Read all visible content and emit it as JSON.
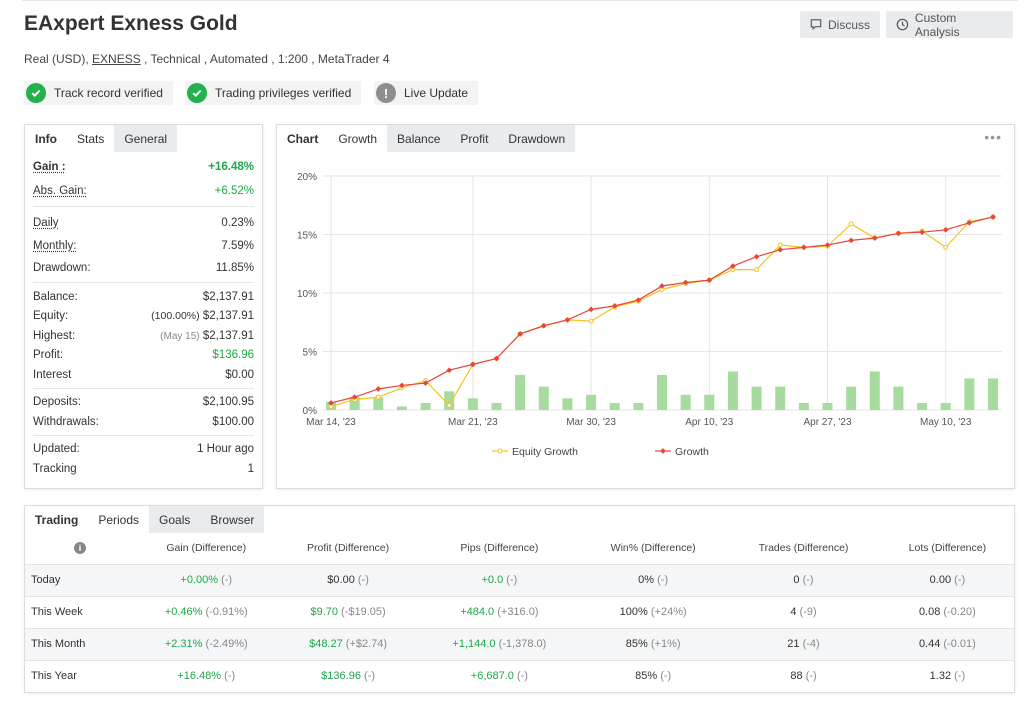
{
  "header": {
    "title": "EAxpert Exness Gold",
    "subtitle_prefix": "Real (USD), ",
    "broker": "EXNESS",
    "subtitle_suffix": " , Technical , Automated , 1:200 , MetaTrader 4",
    "discuss_label": "Discuss",
    "custom_analysis_label": "Custom Analysis"
  },
  "badges": {
    "track_record": "Track record verified",
    "trading_privileges": "Trading privileges verified",
    "live_update": "Live Update"
  },
  "stats_tabs": [
    "Info",
    "Stats",
    "General"
  ],
  "stats": {
    "gain_label": "Gain :",
    "gain_value": "+16.48%",
    "abs_gain_label": "Abs. Gain:",
    "abs_gain_value": "+6.52%",
    "daily_label": "Daily",
    "daily_value": "0.23%",
    "monthly_label": "Monthly:",
    "monthly_value": "7.59%",
    "drawdown_label": "Drawdown:",
    "drawdown_value": "11.85%",
    "balance_label": "Balance:",
    "balance_value": "$2,137.91",
    "equity_label": "Equity:",
    "equity_pct": "(100.00%)",
    "equity_value": "$2,137.91",
    "highest_label": "Highest:",
    "highest_date": "(May 15)",
    "highest_value": "$2,137.91",
    "profit_label": "Profit:",
    "profit_value": "$136.96",
    "interest_label": "Interest",
    "interest_value": "$0.00",
    "deposits_label": "Deposits:",
    "deposits_value": "$2,100.95",
    "withdrawals_label": "Withdrawals:",
    "withdrawals_value": "$100.00",
    "updated_label": "Updated:",
    "updated_value": "1 Hour ago",
    "tracking_label": "Tracking",
    "tracking_value": "1"
  },
  "chart_tabs": [
    "Chart",
    "Growth",
    "Balance",
    "Profit",
    "Drawdown"
  ],
  "chart_data": {
    "type": "line",
    "title": "",
    "x_tick_labels": [
      "Mar 14, '23",
      "Mar 21, '23",
      "Mar 30, '23",
      "Apr 10, '23",
      "Apr 27, '23",
      "May 10, '23"
    ],
    "y_tick_labels": [
      "0%",
      "5%",
      "10%",
      "15%",
      "20%"
    ],
    "ylim": [
      0,
      20
    ],
    "grid": true,
    "legend_position": "bottom",
    "series": [
      {
        "name": "Equity Growth",
        "color": "#f5c518",
        "values": [
          0.3,
          0.9,
          1.1,
          1.9,
          2.5,
          0.4,
          3.9,
          4.4,
          6.5,
          7.2,
          7.7,
          7.6,
          8.8,
          9.3,
          10.3,
          10.8,
          11.1,
          12.0,
          12.0,
          14.1,
          13.9,
          14.0,
          15.9,
          14.7,
          15.1,
          15.3,
          13.9,
          16.1,
          16.5
        ]
      },
      {
        "name": "Growth",
        "color": "#e8453c",
        "values": [
          0.6,
          1.1,
          1.8,
          2.1,
          2.3,
          3.4,
          3.9,
          4.4,
          6.5,
          7.2,
          7.7,
          8.6,
          8.9,
          9.4,
          10.6,
          10.9,
          11.1,
          12.3,
          13.1,
          13.7,
          13.9,
          14.1,
          14.5,
          14.7,
          15.1,
          15.2,
          15.4,
          16.0,
          16.5
        ]
      }
    ],
    "bars": {
      "color": "#a8dba0",
      "values": [
        0.7,
        1.1,
        1.1,
        0.3,
        0.6,
        1.6,
        1.0,
        0.6,
        3.0,
        2.0,
        1.0,
        1.3,
        0.6,
        0.6,
        3.0,
        1.3,
        1.3,
        3.3,
        2.0,
        2.0,
        0.6,
        0.6,
        2.0,
        3.3,
        2.0,
        0.6,
        0.6,
        2.7,
        2.7
      ]
    }
  },
  "periods_tabs": [
    "Trading",
    "Periods",
    "Goals",
    "Browser"
  ],
  "periods": {
    "headers": [
      "Gain (Difference)",
      "Profit (Difference)",
      "Pips (Difference)",
      "Win% (Difference)",
      "Trades (Difference)",
      "Lots (Difference)"
    ],
    "rows": [
      {
        "label": "Today",
        "cells": [
          [
            "+0.00%",
            " (-)",
            "g"
          ],
          [
            "$0.00",
            " (-)",
            ""
          ],
          [
            "+0.0",
            " (-)",
            "g"
          ],
          [
            "0%",
            " (-)",
            ""
          ],
          [
            "0",
            " (-)",
            ""
          ],
          [
            "0.00",
            " (-)",
            ""
          ]
        ]
      },
      {
        "label": "This Week",
        "cells": [
          [
            "+0.46%",
            " (-0.91%)",
            "g"
          ],
          [
            "$9.70",
            " (-$19.05)",
            "g"
          ],
          [
            "+484.0",
            " (+316.0)",
            "g"
          ],
          [
            "100%",
            " (+24%)",
            ""
          ],
          [
            "4",
            " (-9)",
            ""
          ],
          [
            "0.08",
            " (-0.20)",
            ""
          ]
        ]
      },
      {
        "label": "This Month",
        "cells": [
          [
            "+2.31%",
            " (-2.49%)",
            "g"
          ],
          [
            "$48.27",
            " (+$2.74)",
            "g"
          ],
          [
            "+1,144.0",
            " (-1,378.0)",
            "g"
          ],
          [
            "85%",
            " (+1%)",
            ""
          ],
          [
            "21",
            " (-4)",
            ""
          ],
          [
            "0.44",
            " (-0.01)",
            ""
          ]
        ]
      },
      {
        "label": "This Year",
        "cells": [
          [
            "+16.48%",
            " (-)",
            "g"
          ],
          [
            "$136.96",
            " (-)",
            "g"
          ],
          [
            "+6,687.0",
            " (-)",
            "g"
          ],
          [
            "85%",
            " (-)",
            ""
          ],
          [
            "88",
            " (-)",
            ""
          ],
          [
            "1.32",
            " (-)",
            ""
          ]
        ]
      }
    ]
  }
}
